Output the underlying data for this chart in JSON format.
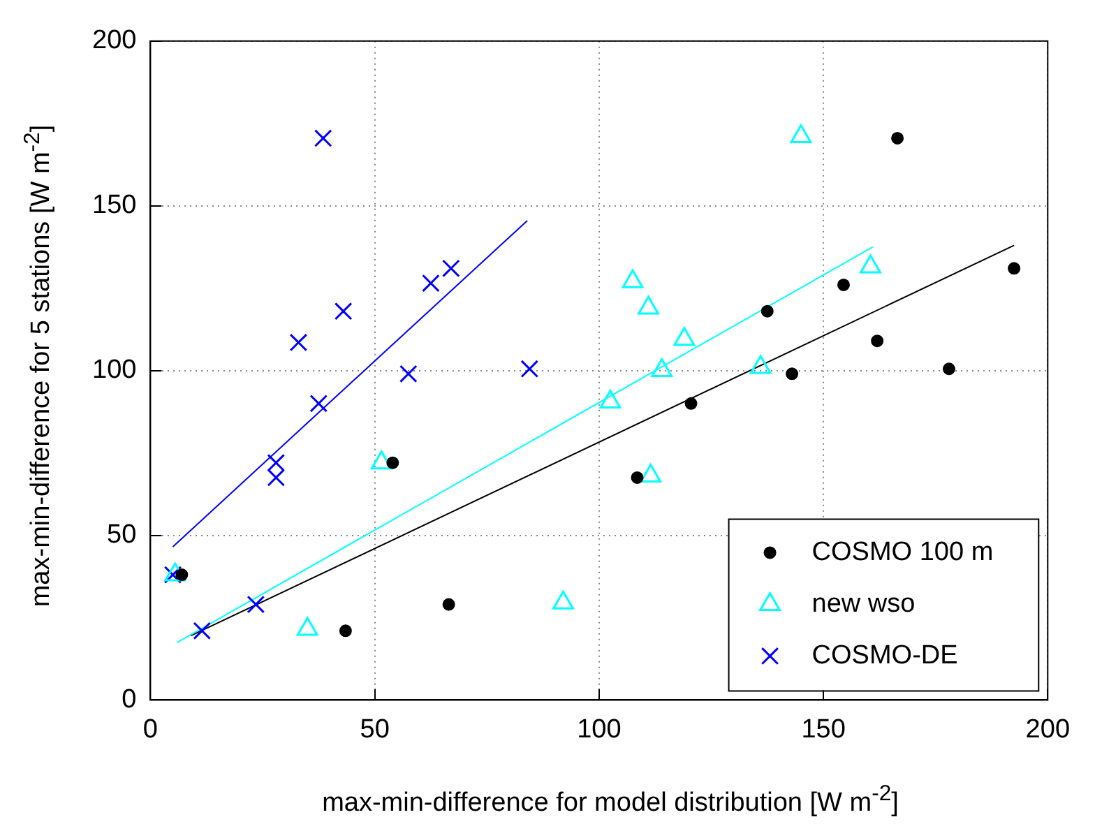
{
  "chart_data": {
    "type": "scatter",
    "xlabel": "max-min-difference for model distribution [W m$^{-2}$]",
    "ylabel": "max-min-difference for 5 stations [W m$^{-2}$]",
    "xlim": [
      0,
      200
    ],
    "xticks": [
      0,
      50,
      100,
      150,
      200
    ],
    "ylim": [
      0,
      200
    ],
    "yticks": [
      0,
      50,
      100,
      150,
      200
    ],
    "grid": true,
    "legend": "bottom right",
    "series": [
      {
        "name": "COSMO 100 m",
        "color": "#000000",
        "marker": "circle",
        "x": [
          7,
          54,
          43.5,
          66.5,
          108.5,
          120.5,
          137.5,
          143,
          154.5,
          162,
          166.5,
          178,
          192.5
        ],
        "values": [
          38,
          72,
          21,
          29,
          67.5,
          90,
          118,
          99,
          126,
          109,
          170.5,
          100.5,
          131
        ]
      },
      {
        "name": "new wso",
        "color": "#00ffff",
        "marker": "triangle",
        "x": [
          5.5,
          35,
          51.5,
          92,
          102.5,
          107.5,
          111,
          119,
          114,
          136,
          111.5,
          145,
          160.5
        ],
        "values": [
          38,
          21.5,
          72,
          29.5,
          90.5,
          127,
          119,
          109.5,
          100,
          101,
          68,
          171,
          131.5
        ]
      },
      {
        "name": "COSMO-DE",
        "color": "#0000ff",
        "marker": "cross",
        "x": [
          5,
          11.5,
          23.5,
          28,
          28,
          37.5,
          33,
          38.5,
          43,
          57.5,
          62.5,
          67,
          84.5
        ],
        "values": [
          38,
          21,
          29,
          72,
          67.5,
          90,
          108.5,
          170.5,
          118,
          99,
          126.5,
          131,
          100.5
        ]
      },
      {
        "type": "line",
        "color": "#0000ff",
        "marker": "none",
        "x": [
          5,
          84
        ],
        "values": [
          46.5,
          145.5
        ]
      },
      {
        "type": "line",
        "color": "#00ffff",
        "marker": "none",
        "x": [
          6,
          161
        ],
        "values": [
          17.5,
          137.5
        ]
      },
      {
        "type": "line",
        "color": "#000000",
        "marker": "none",
        "x": [
          9,
          192.5
        ],
        "values": [
          19.5,
          138
        ]
      }
    ]
  }
}
